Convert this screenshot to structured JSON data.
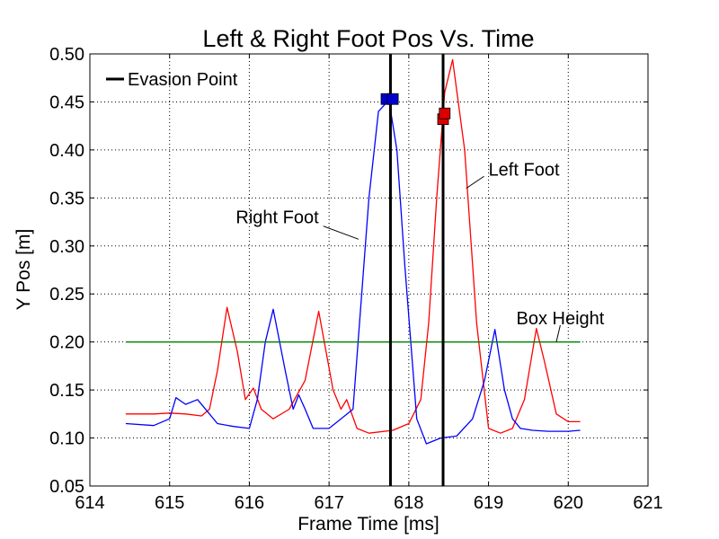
{
  "chart_data": {
    "type": "line",
    "title": "Left & Right Foot Pos Vs. Time",
    "xlabel": "Frame Time [ms]",
    "ylabel": "Y Pos [m]",
    "xlim": [
      614,
      621
    ],
    "ylim": [
      0.05,
      0.5
    ],
    "xticks": [
      "614",
      "615",
      "616",
      "617",
      "618",
      "619",
      "620",
      "621"
    ],
    "yticks": [
      "0.05",
      "0.10",
      "0.15",
      "0.20",
      "0.25",
      "0.30",
      "0.35",
      "0.40",
      "0.45",
      "0.50"
    ],
    "grid": true,
    "legend": {
      "location": "top-left",
      "entries": [
        "Evasion Point"
      ]
    },
    "series": [
      {
        "name": "Left Foot",
        "color": "#ff0000",
        "x": [
          614.45,
          614.8,
          615.0,
          615.2,
          615.4,
          615.5,
          615.6,
          615.72,
          615.85,
          615.95,
          616.05,
          616.15,
          616.3,
          616.5,
          616.7,
          616.87,
          617.05,
          617.15,
          617.22,
          617.35,
          617.5,
          617.8,
          618.0,
          618.15,
          618.25,
          618.35,
          618.45,
          618.55,
          618.7,
          618.85,
          619.0,
          619.15,
          619.3,
          619.45,
          619.6,
          619.7,
          619.85,
          620.0,
          620.15
        ],
        "y": [
          0.125,
          0.125,
          0.126,
          0.125,
          0.123,
          0.13,
          0.17,
          0.236,
          0.19,
          0.14,
          0.152,
          0.13,
          0.12,
          0.13,
          0.16,
          0.232,
          0.15,
          0.13,
          0.14,
          0.11,
          0.105,
          0.108,
          0.115,
          0.14,
          0.22,
          0.35,
          0.46,
          0.494,
          0.4,
          0.22,
          0.11,
          0.105,
          0.11,
          0.14,
          0.214,
          0.18,
          0.125,
          0.117,
          0.117
        ]
      },
      {
        "name": "Right Foot",
        "color": "#0000ff",
        "x": [
          614.45,
          614.8,
          615.0,
          615.08,
          615.2,
          615.35,
          615.5,
          615.6,
          615.8,
          616.0,
          616.1,
          616.2,
          616.3,
          616.45,
          616.55,
          616.62,
          616.7,
          616.8,
          617.0,
          617.3,
          617.5,
          617.62,
          617.75,
          617.85,
          617.95,
          618.1,
          618.22,
          618.4,
          618.6,
          618.8,
          618.95,
          619.08,
          619.2,
          619.3,
          619.4,
          619.55,
          619.75,
          620.0,
          620.15
        ],
        "y": [
          0.115,
          0.113,
          0.12,
          0.142,
          0.135,
          0.14,
          0.125,
          0.115,
          0.112,
          0.11,
          0.14,
          0.2,
          0.234,
          0.17,
          0.13,
          0.145,
          0.13,
          0.11,
          0.11,
          0.13,
          0.35,
          0.44,
          0.452,
          0.4,
          0.28,
          0.12,
          0.094,
          0.1,
          0.102,
          0.12,
          0.16,
          0.213,
          0.15,
          0.12,
          0.11,
          0.108,
          0.107,
          0.107,
          0.108
        ]
      },
      {
        "name": "Box Height",
        "color": "#007f00",
        "x": [
          614.45,
          620.15
        ],
        "y": [
          0.2,
          0.2
        ]
      }
    ],
    "evasion_points": [
      617.77,
      618.43
    ],
    "markers": [
      {
        "x": 617.72,
        "y": 0.453,
        "color": "#0000cc"
      },
      {
        "x": 617.8,
        "y": 0.453,
        "color": "#0000cc"
      },
      {
        "x": 618.43,
        "y": 0.432,
        "color": "#dd0000"
      },
      {
        "x": 618.45,
        "y": 0.438,
        "color": "#dd0000"
      }
    ],
    "annotations": [
      {
        "text": "Right Foot",
        "x": 615.8,
        "y": 0.33,
        "arrow_to": [
          617.37,
          0.307
        ]
      },
      {
        "text": "Left Foot",
        "x": 619.0,
        "y": 0.38,
        "arrow_to": [
          618.72,
          0.36
        ]
      },
      {
        "text": "Box Height",
        "x": 619.9,
        "y": 0.225,
        "arrow_to": [
          619.85,
          0.2
        ]
      }
    ]
  }
}
